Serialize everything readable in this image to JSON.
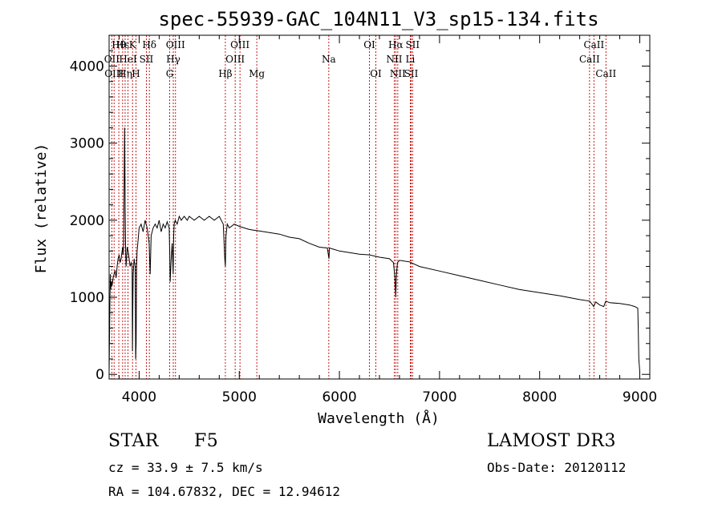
{
  "chart_data": {
    "type": "line",
    "title": "spec-55939-GAC_104N11_V3_sp15-134.fits",
    "xlabel": "Wavelength (Å)",
    "ylabel": "Flux (relative)",
    "xlim": [
      3700,
      9100
    ],
    "ylim": [
      -60,
      4400
    ],
    "xticks": [
      4000,
      5000,
      6000,
      7000,
      8000,
      9000
    ],
    "yticks": [
      0,
      1000,
      2000,
      3000,
      4000
    ],
    "series": [
      {
        "name": "flux",
        "x": [
          3700,
          3708,
          3712,
          3716,
          3722,
          3730,
          3740,
          3750,
          3760,
          3770,
          3780,
          3790,
          3800,
          3810,
          3820,
          3830,
          3835,
          3840,
          3845,
          3850,
          3855,
          3860,
          3865,
          3870,
          3875,
          3880,
          3890,
          3900,
          3910,
          3920,
          3930,
          3933,
          3936,
          3940,
          3950,
          3960,
          3965,
          3970,
          3975,
          3980,
          3990,
          4000,
          4020,
          4040,
          4060,
          4080,
          4100,
          4110,
          4120,
          4140,
          4160,
          4180,
          4200,
          4220,
          4240,
          4260,
          4280,
          4300,
          4305,
          4310,
          4320,
          4330,
          4340,
          4345,
          4350,
          4360,
          4380,
          4400,
          4420,
          4450,
          4480,
          4500,
          4550,
          4600,
          4650,
          4700,
          4750,
          4800,
          4840,
          4855,
          4861,
          4867,
          4880,
          4900,
          4950,
          5000,
          5050,
          5100,
          5150,
          5200,
          5300,
          5400,
          5500,
          5600,
          5700,
          5800,
          5880,
          5890,
          5896,
          5900,
          5950,
          6000,
          6100,
          6200,
          6300,
          6400,
          6500,
          6540,
          6555,
          6563,
          6570,
          6580,
          6600,
          6700,
          6800,
          7000,
          7200,
          7400,
          7600,
          7800,
          8000,
          8200,
          8400,
          8500,
          8540,
          8560,
          8600,
          8640,
          8660,
          8700,
          8800,
          8900,
          8950,
          8980,
          8985,
          8990,
          9000
        ],
        "values": [
          20,
          900,
          1300,
          1100,
          1200,
          1150,
          1250,
          1300,
          1350,
          1250,
          1400,
          1500,
          1550,
          1450,
          1500,
          1600,
          1650,
          1550,
          1700,
          2400,
          3200,
          2200,
          1600,
          1400,
          1500,
          1650,
          1600,
          1500,
          1400,
          1450,
          1400,
          300,
          800,
          1300,
          1500,
          1400,
          200,
          400,
          1400,
          1600,
          1750,
          1900,
          1950,
          1850,
          2000,
          1900,
          1700,
          1300,
          1800,
          1900,
          1950,
          1900,
          2000,
          1850,
          1950,
          1900,
          1980,
          1900,
          1600,
          1200,
          1500,
          1700,
          1300,
          1800,
          1950,
          2000,
          1950,
          2050,
          2000,
          2050,
          2000,
          2050,
          2000,
          2050,
          2000,
          2050,
          2000,
          2050,
          1950,
          1500,
          1400,
          1800,
          1950,
          1900,
          1950,
          1920,
          1900,
          1880,
          1870,
          1860,
          1840,
          1820,
          1780,
          1760,
          1700,
          1650,
          1640,
          1550,
          1500,
          1640,
          1620,
          1600,
          1580,
          1560,
          1550,
          1520,
          1500,
          1450,
          1250,
          1000,
          1300,
          1450,
          1480,
          1460,
          1400,
          1340,
          1280,
          1220,
          1160,
          1100,
          1060,
          1020,
          970,
          950,
          880,
          940,
          900,
          880,
          950,
          930,
          920,
          900,
          880,
          860,
          600,
          200,
          40
        ]
      }
    ],
    "lines": [
      {
        "name": "Hθ",
        "wl": 3797,
        "row": 0
      },
      {
        "name": "OII",
        "wl": 3727,
        "row": 1
      },
      {
        "name": "OIII",
        "wl": 3750,
        "row": 2
      },
      {
        "name": "Hε",
        "wl": 3835,
        "row": 0
      },
      {
        "name": "HeI",
        "wl": 3889,
        "row": 1
      },
      {
        "name": "Hη",
        "wl": 3860,
        "row": 2
      },
      {
        "name": "K",
        "wl": 3934,
        "row": 0
      },
      {
        "name": "SII",
        "wl": 4072,
        "row": 1
      },
      {
        "name": "H",
        "wl": 3968,
        "row": 2
      },
      {
        "name": "Hδ",
        "wl": 4102,
        "row": 0
      },
      {
        "name": "OIII",
        "wl": 4363,
        "row": 0
      },
      {
        "name": "Hγ",
        "wl": 4341,
        "row": 1
      },
      {
        "name": "G",
        "wl": 4305,
        "row": 2
      },
      {
        "name": "OIII",
        "wl": 5007,
        "row": 0
      },
      {
        "name": "OIII",
        "wl": 4959,
        "row": 1
      },
      {
        "name": "Hβ",
        "wl": 4861,
        "row": 2
      },
      {
        "name": "Mg",
        "wl": 5175,
        "row": 2
      },
      {
        "name": "Na",
        "wl": 5894,
        "row": 1
      },
      {
        "name": "OI",
        "wl": 6300,
        "row": 0
      },
      {
        "name": "OI",
        "wl": 6364,
        "row": 2
      },
      {
        "name": "Hα",
        "wl": 6563,
        "row": 0
      },
      {
        "name": "NII",
        "wl": 6548,
        "row": 1
      },
      {
        "name": "NII",
        "wl": 6583,
        "row": 2
      },
      {
        "name": "SII",
        "wl": 6731,
        "row": 0
      },
      {
        "name": "Li",
        "wl": 6708,
        "row": 1
      },
      {
        "name": "SII",
        "wl": 6717,
        "row": 2
      },
      {
        "name": "CaII",
        "wl": 8542,
        "row": 0
      },
      {
        "name": "CaII",
        "wl": 8498,
        "row": 1
      },
      {
        "name": "CaII",
        "wl": 8662,
        "row": 2
      }
    ]
  },
  "info": {
    "class": "STAR",
    "subclass": "F5",
    "survey": "LAMOST DR3",
    "cz": "cz = 33.9 ± 7.5 km/s",
    "obs_date": "Obs-Date: 20120112",
    "coords": "RA = 104.67832, DEC =  12.94612"
  },
  "colors": {
    "spectrum": "#000000",
    "line_marker": "#c00000",
    "axis": "#000000"
  }
}
